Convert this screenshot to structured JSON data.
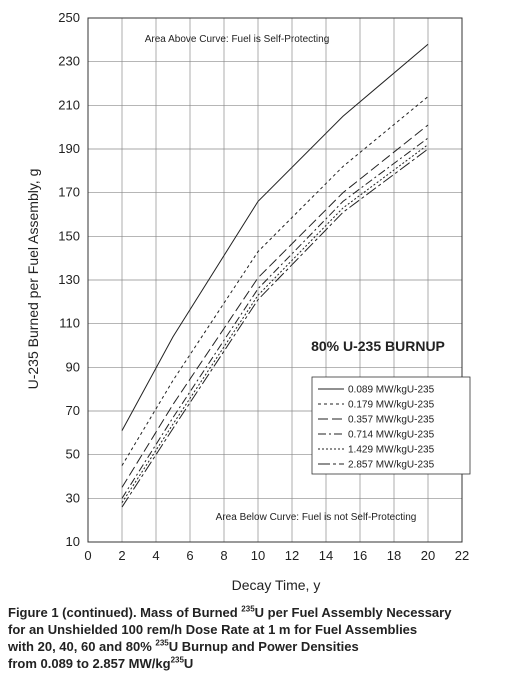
{
  "chart_data": {
    "type": "line",
    "title": "",
    "xlabel": "Decay Time, y",
    "ylabel": "U-235 Burned per Fuel Assembly, g",
    "xlim": [
      0,
      22
    ],
    "ylim": [
      10,
      250
    ],
    "xticks": [
      0,
      2,
      4,
      6,
      8,
      10,
      12,
      14,
      16,
      18,
      20,
      22
    ],
    "yticks": [
      10,
      30,
      50,
      70,
      90,
      110,
      130,
      150,
      170,
      190,
      210,
      230,
      250
    ],
    "grid": true,
    "legend_position": "right",
    "burnup_label": "80% U-235 BURNUP",
    "annotation_above": "Area Above Curve: Fuel is Self-Protecting",
    "annotation_below": "Area Below Curve: Fuel is not Self-Protecting",
    "series": [
      {
        "name": "0.089 MW/kgU-235",
        "x": [
          2,
          5,
          10,
          15,
          20
        ],
        "values": [
          61,
          104,
          166,
          205,
          238
        ],
        "dash": ""
      },
      {
        "name": "0.179 MW/kgU-235",
        "x": [
          2,
          5,
          10,
          15,
          20
        ],
        "values": [
          45,
          84,
          143,
          182,
          214
        ],
        "dash": "3,3"
      },
      {
        "name": "0.357 MW/kgU-235",
        "x": [
          2,
          5,
          10,
          15,
          20
        ],
        "values": [
          35,
          73,
          131,
          170,
          201
        ],
        "dash": "10,4"
      },
      {
        "name": "0.714 MW/kgU-235",
        "x": [
          2,
          5,
          10,
          15,
          20
        ],
        "values": [
          30,
          67,
          126,
          166,
          195
        ],
        "dash": "8,3,2,3"
      },
      {
        "name": "1.429 MW/kgU-235",
        "x": [
          2,
          5,
          10,
          15,
          20
        ],
        "values": [
          28,
          64,
          123,
          163,
          192
        ],
        "dash": "2,2"
      },
      {
        "name": "2.857 MW/kgU-235",
        "x": [
          2,
          5,
          10,
          15,
          20
        ],
        "values": [
          26,
          62,
          121,
          161,
          190
        ],
        "dash": "12,3,3,3"
      }
    ]
  },
  "caption": {
    "line1_pre": "Figure 1 (continued).  Mass of Burned ",
    "line1_sup": "235",
    "line1_post": "U per Fuel Assembly Necessary",
    "line2": "for an Unshielded 100 rem/h Dose Rate at 1 m for Fuel Assemblies",
    "line3_pre": "with 20, 40, 60 and 80% ",
    "line3_sup": "235",
    "line3_post": "U Burnup and Power Densities",
    "line4_pre": "from 0.089 to 2.857 MW/kg",
    "line4_sup": "235",
    "line4_post": "U"
  }
}
